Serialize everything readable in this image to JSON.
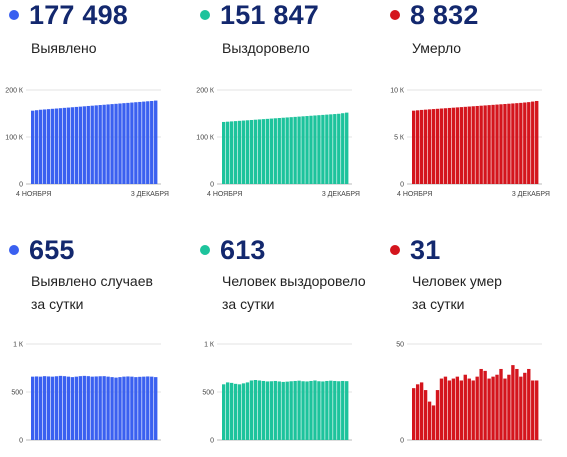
{
  "charts": [
    {
      "stat_value": "177 498",
      "label_lines": [
        "Выявлено"
      ],
      "color": "#3a60f0",
      "dot_color": "#3a60f0",
      "chart_data": {
        "type": "bar",
        "x_start_label": "4 НОЯБРЯ",
        "x_end_label": "3 ДЕКАБРЯ",
        "y_ticks": [
          {
            "v": 0,
            "label": "0"
          },
          {
            "v": 100000,
            "label": "100 К"
          },
          {
            "v": 200000,
            "label": "200 К"
          }
        ],
        "ylim": [
          0,
          200000
        ],
        "values": [
          156000,
          157000,
          158000,
          158600,
          159300,
          160000,
          160600,
          161300,
          162000,
          162600,
          163300,
          164000,
          164600,
          165300,
          166000,
          166600,
          167300,
          168000,
          168600,
          169300,
          170000,
          170600,
          171300,
          172000,
          172600,
          173300,
          174000,
          174600,
          175300,
          176000,
          176600,
          177498
        ]
      }
    },
    {
      "stat_value": "151 847",
      "label_lines": [
        "Выздоровело"
      ],
      "color": "#1dc39c",
      "dot_color": "#1dc39c",
      "chart_data": {
        "type": "bar",
        "x_start_label": "4 НОЯБРЯ",
        "x_end_label": "3 ДЕКАБРЯ",
        "y_ticks": [
          {
            "v": 0,
            "label": "0"
          },
          {
            "v": 100000,
            "label": "100 К"
          },
          {
            "v": 200000,
            "label": "200 К"
          }
        ],
        "ylim": [
          0,
          200000
        ],
        "values": [
          132000,
          132600,
          133200,
          133800,
          134400,
          135000,
          135600,
          136200,
          136800,
          137400,
          138000,
          138600,
          139200,
          139800,
          140400,
          141000,
          141600,
          142200,
          142800,
          143400,
          144000,
          144600,
          145200,
          145800,
          146400,
          147000,
          147600,
          148200,
          148800,
          149400,
          150600,
          151847
        ]
      }
    },
    {
      "stat_value": "8 832",
      "label_lines": [
        "Умерло"
      ],
      "color": "#d4151d",
      "dot_color": "#d4151d",
      "chart_data": {
        "type": "bar",
        "x_start_label": "4 НОЯБРЯ",
        "x_end_label": "3 ДЕКАБРЯ",
        "y_ticks": [
          {
            "v": 0,
            "label": "0"
          },
          {
            "v": 5000,
            "label": "5 К"
          },
          {
            "v": 10000,
            "label": "10 К"
          }
        ],
        "ylim": [
          0,
          10000
        ],
        "values": [
          7800,
          7840,
          7880,
          7910,
          7940,
          7970,
          8000,
          8030,
          8060,
          8090,
          8120,
          8150,
          8180,
          8210,
          8240,
          8270,
          8300,
          8330,
          8360,
          8390,
          8420,
          8450,
          8480,
          8510,
          8540,
          8570,
          8600,
          8630,
          8670,
          8710,
          8770,
          8832
        ]
      }
    },
    {
      "stat_value": "655",
      "label_lines": [
        "Выявлено случаев",
        "за сутки"
      ],
      "color": "#3a60f0",
      "dot_color": "#3a60f0",
      "chart_data": {
        "type": "bar",
        "x_start_label": "",
        "x_end_label": "",
        "y_ticks": [
          {
            "v": 0,
            "label": "0"
          },
          {
            "v": 500,
            "label": "500"
          },
          {
            "v": 1000,
            "label": "1 К"
          }
        ],
        "ylim": [
          0,
          1000
        ],
        "values": [
          660,
          662,
          660,
          665,
          662,
          660,
          664,
          668,
          665,
          660,
          655,
          660,
          665,
          668,
          665,
          660,
          662,
          664,
          665,
          660,
          655,
          650,
          655,
          660,
          662,
          660,
          655,
          658,
          660,
          662,
          660,
          655
        ]
      }
    },
    {
      "stat_value": "613",
      "label_lines": [
        "Человек выздоровело",
        "за сутки"
      ],
      "color": "#1dc39c",
      "dot_color": "#1dc39c",
      "chart_data": {
        "type": "bar",
        "x_start_label": "",
        "x_end_label": "",
        "y_ticks": [
          {
            "v": 0,
            "label": "0"
          },
          {
            "v": 500,
            "label": "500"
          },
          {
            "v": 1000,
            "label": "1 К"
          }
        ],
        "ylim": [
          0,
          1000
        ],
        "values": [
          580,
          600,
          595,
          585,
          580,
          590,
          600,
          620,
          625,
          620,
          615,
          610,
          612,
          615,
          610,
          605,
          608,
          612,
          615,
          618,
          612,
          610,
          615,
          620,
          612,
          610,
          615,
          618,
          615,
          612,
          615,
          613
        ]
      }
    },
    {
      "stat_value": "31",
      "label_lines": [
        "Человек умер",
        "за сутки"
      ],
      "color": "#d4151d",
      "dot_color": "#d4151d",
      "chart_data": {
        "type": "bar",
        "x_start_label": "",
        "x_end_label": "",
        "y_ticks": [
          {
            "v": 0,
            "label": "0"
          },
          {
            "v": 50,
            "label": "50"
          }
        ],
        "ylim": [
          0,
          50
        ],
        "values": [
          27,
          29,
          30,
          26,
          20,
          18,
          26,
          32,
          33,
          31,
          32,
          33,
          31,
          34,
          32,
          31,
          33,
          37,
          36,
          32,
          33,
          34,
          37,
          32,
          34,
          39,
          37,
          33,
          35,
          37,
          31,
          31
        ]
      }
    }
  ]
}
